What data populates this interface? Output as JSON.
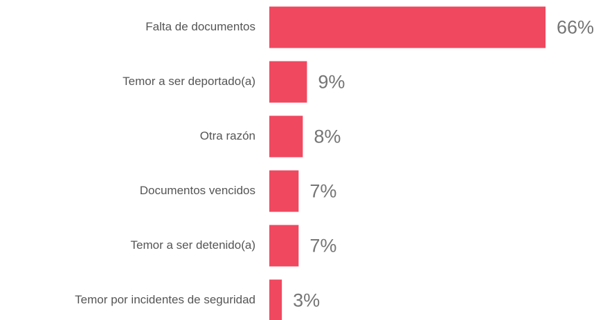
{
  "chart_data": {
    "type": "bar",
    "orientation": "horizontal",
    "categories": [
      "Falta de documentos",
      "Temor a ser deportado(a)",
      "Otra razón",
      "Documentos vencidos",
      "Temor a ser detenido(a)",
      "Temor por incidentes de seguridad"
    ],
    "values": [
      66,
      9,
      8,
      7,
      7,
      3
    ],
    "value_labels": [
      "66%",
      "9%",
      "8%",
      "7%",
      "7%",
      "3%"
    ],
    "color": "#f0485f"
  }
}
